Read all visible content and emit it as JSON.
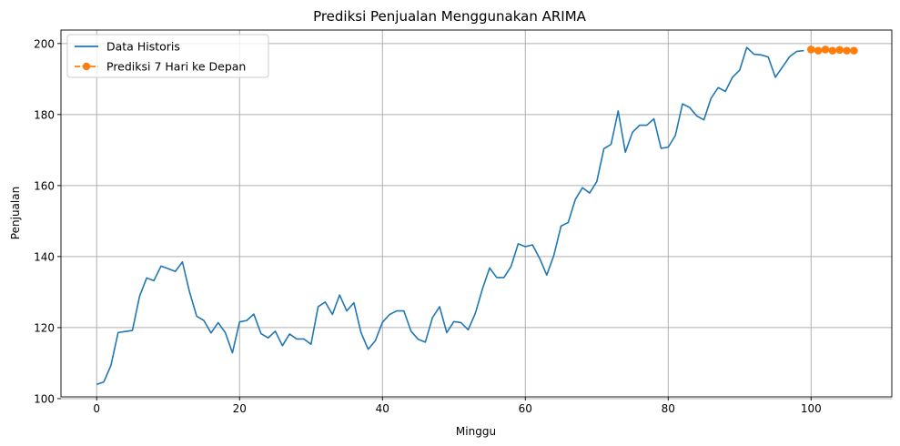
{
  "chart_data": {
    "type": "line",
    "title": "Prediksi Penjualan Menggunakan ARIMA",
    "xlabel": "Minggu",
    "ylabel": "Penjualan",
    "xlim": [
      -5,
      111.3
    ],
    "ylim": [
      100.5,
      203.8
    ],
    "xticks": [
      0,
      20,
      40,
      60,
      80,
      100
    ],
    "yticks": [
      100,
      120,
      140,
      160,
      180,
      200
    ],
    "grid": true,
    "legend_position": "top-left",
    "series": [
      {
        "name": "Data Historis",
        "color": "#1f77b4",
        "style": "solid",
        "x": [
          0,
          1,
          2,
          3,
          4,
          5,
          6,
          7,
          8,
          9,
          10,
          11,
          12,
          13,
          14,
          15,
          16,
          17,
          18,
          19,
          20,
          21,
          22,
          23,
          24,
          25,
          26,
          27,
          28,
          29,
          30,
          31,
          32,
          33,
          34,
          35,
          36,
          37,
          38,
          39,
          40,
          41,
          42,
          43,
          44,
          45,
          46,
          47,
          48,
          49,
          50,
          51,
          52,
          53,
          54,
          55,
          56,
          57,
          58,
          59,
          60,
          61,
          62,
          63,
          64,
          65,
          66,
          67,
          68,
          69,
          70,
          71,
          72,
          73,
          74,
          75,
          76,
          77,
          78,
          79,
          80,
          81,
          82,
          83,
          84,
          85,
          86,
          87,
          88,
          89,
          90,
          91,
          92,
          93,
          94,
          95,
          96,
          97,
          98,
          99
        ],
        "values": [
          104.0,
          104.7,
          109.4,
          118.6,
          118.9,
          119.2,
          128.8,
          134.0,
          133.2,
          137.3,
          136.6,
          135.8,
          138.5,
          130.0,
          123.2,
          122.0,
          118.5,
          121.4,
          118.6,
          112.9,
          121.6,
          122.0,
          123.8,
          118.3,
          117.1,
          119.0,
          114.9,
          118.2,
          116.8,
          116.8,
          115.3,
          125.9,
          127.2,
          123.7,
          129.2,
          124.7,
          127.0,
          118.6,
          113.9,
          116.3,
          121.5,
          123.7,
          124.7,
          124.7,
          119.0,
          116.7,
          115.9,
          122.8,
          125.9,
          118.6,
          121.7,
          121.4,
          119.4,
          124.0,
          130.9,
          136.8,
          134.1,
          134.1,
          137.2,
          143.6,
          142.8,
          143.3,
          139.5,
          134.8,
          140.4,
          148.6,
          149.6,
          156.1,
          159.4,
          157.9,
          161.1,
          170.4,
          171.6,
          181.0,
          169.4,
          175.0,
          177.0,
          177.0,
          178.8,
          170.5,
          170.8,
          174.1,
          183.0,
          182.0,
          179.6,
          178.5,
          184.6,
          187.6,
          186.5,
          190.5,
          192.5,
          198.9,
          197.0,
          196.8,
          196.2,
          190.5,
          193.4,
          196.3,
          197.8,
          198.0
        ]
      },
      {
        "name": "Prediksi 7 Hari ke Depan",
        "color": "#ff7f0e",
        "style": "dashed",
        "marker": "circle",
        "x": [
          100,
          101,
          102,
          103,
          104,
          105,
          106
        ],
        "values": [
          198.3,
          198.0,
          198.3,
          198.0,
          198.2,
          198.0,
          198.0
        ]
      }
    ]
  }
}
